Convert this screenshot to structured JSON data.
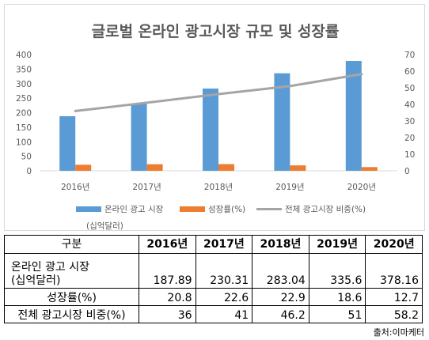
{
  "chart_data": {
    "type": "bar",
    "title": "글로벌 온라인 광고시장 규모 및 성장률",
    "categories": [
      "2016년",
      "2017년",
      "2018년",
      "2019년",
      "2020년"
    ],
    "series": [
      {
        "name": "온라인 광고 시장",
        "sub_name": "(십억달러)",
        "type": "bar",
        "axis": "left",
        "color": "#5b9bd5",
        "values": [
          187.89,
          230.31,
          283.04,
          335.6,
          378.16
        ]
      },
      {
        "name": "성장률(%)",
        "type": "bar",
        "axis": "left",
        "color": "#ed7d31",
        "values": [
          20.8,
          22.6,
          22.9,
          18.6,
          12.7
        ]
      },
      {
        "name": "전체 광고시장 비중(%)",
        "type": "line",
        "axis": "right",
        "color": "#a5a5a5",
        "values": [
          36,
          41,
          46.2,
          51,
          58.2
        ]
      }
    ],
    "ylim": [
      0,
      400
    ],
    "y_ticks": [
      0,
      50,
      100,
      150,
      200,
      250,
      300,
      350,
      400
    ],
    "y2lim": [
      0,
      70
    ],
    "y2_ticks": [
      0,
      10,
      20,
      30,
      40,
      50,
      60,
      70
    ],
    "grid": false,
    "legend_position": "bottom"
  },
  "table": {
    "header": [
      "구분",
      "2016년",
      "2017년",
      "2018년",
      "2019년",
      "2020년"
    ],
    "rows": [
      {
        "label_line1": "온라인 광고 시장",
        "label_line2": "(십억달러)",
        "values": [
          "187.89",
          "230.31",
          "283.04",
          "335.6",
          "378.16"
        ]
      },
      {
        "label_line1": "성장률(%)",
        "values": [
          "20.8",
          "22.6",
          "22.9",
          "18.6",
          "12.7"
        ]
      },
      {
        "label_line1": "전체 광고시장 비중(%)",
        "values": [
          "36",
          "41",
          "46.2",
          "51",
          "58.2"
        ]
      }
    ]
  },
  "source": "출처:이마케터"
}
